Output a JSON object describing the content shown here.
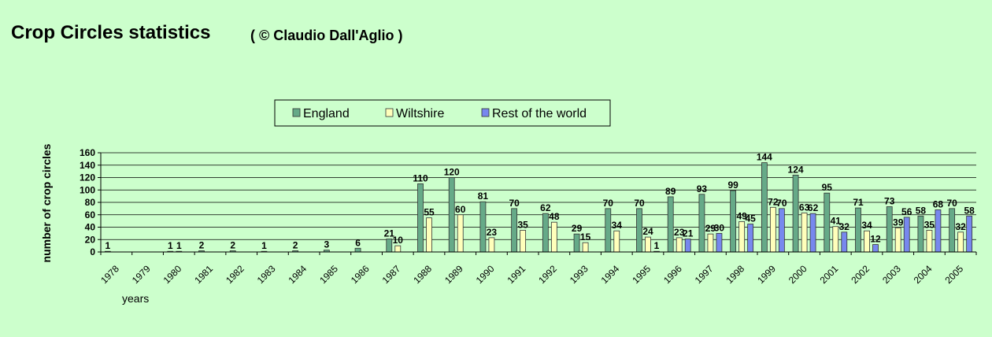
{
  "page": {
    "title": "Crop Circles statistics",
    "subtitle": "( © Claudio Dall'Aglio )"
  },
  "chart_data": {
    "type": "bar",
    "xlabel": "years",
    "ylabel": "number of crop circles",
    "ylim": [
      0,
      160
    ],
    "yticks": [
      0,
      20,
      40,
      60,
      80,
      100,
      120,
      140,
      160
    ],
    "grid": true,
    "legend_position": "top-center",
    "categories": [
      "1978",
      "1979",
      "1980",
      "1981",
      "1982",
      "1983",
      "1984",
      "1985",
      "1986",
      "1987",
      "1988",
      "1989",
      "1990",
      "1991",
      "1992",
      "1993",
      "1994",
      "1995",
      "1996",
      "1997",
      "1998",
      "1999",
      "2000",
      "2001",
      "2002",
      "2003",
      "2004",
      "2005"
    ],
    "series": [
      {
        "name": "England",
        "color": "#66aa88",
        "values": [
          1,
          0,
          1,
          2,
          2,
          1,
          2,
          3,
          6,
          21,
          110,
          120,
          81,
          70,
          62,
          29,
          70,
          70,
          89,
          93,
          99,
          144,
          124,
          95,
          71,
          73,
          58,
          70
        ]
      },
      {
        "name": "Wiltshire",
        "color": "#ffffbb",
        "values": [
          0,
          0,
          1,
          0,
          0,
          0,
          0,
          0,
          0,
          10,
          55,
          60,
          23,
          35,
          48,
          15,
          34,
          24,
          23,
          29,
          49,
          72,
          63,
          41,
          34,
          39,
          35,
          32
        ]
      },
      {
        "name": "Rest of the world",
        "color": "#7788ee",
        "values": [
          0,
          0,
          0,
          0,
          0,
          0,
          0,
          0,
          0,
          0,
          0,
          0,
          0,
          0,
          0,
          0,
          0,
          1,
          21,
          30,
          45,
          70,
          62,
          32,
          12,
          56,
          68,
          58
        ]
      }
    ]
  }
}
